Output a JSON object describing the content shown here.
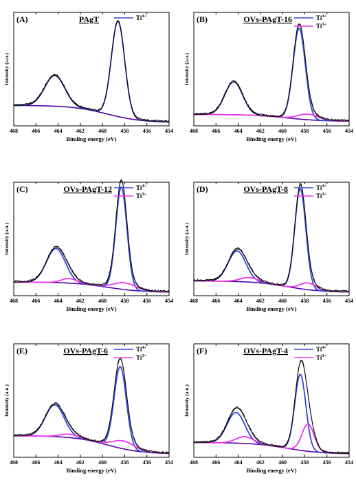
{
  "chart_data": [
    {
      "panel": "(A)",
      "title": "PAgT",
      "type": "line",
      "xlabel": "Binding energy (eV)",
      "ylabel": "Intensity (a.u.)",
      "xlim": [
        468,
        454
      ],
      "x_reversed": true,
      "xticks": [
        468,
        466,
        464,
        462,
        460,
        458,
        456,
        454
      ],
      "legend": [
        {
          "name": "Ti",
          "sup": "4+",
          "color": "#3344dd"
        }
      ],
      "legend_placement": "top-right",
      "baseline": {
        "start": 0.18,
        "end": 0.03
      },
      "peaks_by_series": {
        "Ti4+": [
          {
            "center": 464.3,
            "height": 0.27,
            "width": 0.9
          },
          {
            "center": 458.6,
            "height": 0.84,
            "width": 0.6
          }
        ]
      },
      "experimental": "envelope",
      "ylim": [
        0,
        1
      ]
    },
    {
      "panel": "(B)",
      "title": "OVs-PAgT-16",
      "type": "line",
      "xlabel": "Binding energy (eV)",
      "ylabel": "Intensity (a.u.)",
      "xlim": [
        468,
        454
      ],
      "x_reversed": true,
      "xticks": [
        468,
        466,
        464,
        462,
        460,
        458,
        456,
        454
      ],
      "legend": [
        {
          "name": "Ti",
          "sup": "4+",
          "color": "#3344dd"
        },
        {
          "name": "Ti",
          "sup": "3+",
          "color": "#ee33ee"
        }
      ],
      "legend_placement": "top-right",
      "baseline": {
        "start": 0.1,
        "end": 0.04
      },
      "peaks_by_series": {
        "Ti4+": [
          {
            "center": 464.4,
            "height": 0.29,
            "width": 0.8
          },
          {
            "center": 458.5,
            "height": 0.8,
            "width": 0.55
          }
        ],
        "Ti3+": [
          {
            "center": 457.7,
            "height": 0.05,
            "width": 0.9
          }
        ]
      },
      "experimental": "envelope",
      "ylim": [
        0,
        1
      ]
    },
    {
      "panel": "(C)",
      "title": "OVs-PAgT-12",
      "type": "line",
      "xlabel": "Binding energy (eV)",
      "ylabel": "Intensity (a.u.)",
      "xlim": [
        468,
        454
      ],
      "x_reversed": true,
      "xticks": [
        468,
        466,
        464,
        462,
        460,
        458,
        456,
        454
      ],
      "legend": [
        {
          "name": "Ti",
          "sup": "4+",
          "color": "#3344dd"
        },
        {
          "name": "Ti",
          "sup": "3+",
          "color": "#ee33ee"
        }
      ],
      "legend_placement": "top-right",
      "baseline": {
        "start": 0.12,
        "end": 0.03
      },
      "peaks_by_series": {
        "Ti4+": [
          {
            "center": 464.2,
            "height": 0.3,
            "width": 0.85
          },
          {
            "center": 458.3,
            "height": 0.9,
            "width": 0.5
          }
        ],
        "Ti3+": [
          {
            "center": 463.0,
            "height": 0.04,
            "width": 0.7
          },
          {
            "center": 458.0,
            "height": 0.06,
            "width": 1.0
          }
        ]
      },
      "experimental": "envelope",
      "ylim": [
        0,
        1
      ]
    },
    {
      "panel": "(D)",
      "title": "OVs-PAgT-8",
      "type": "line",
      "xlabel": "Binding energy (eV)",
      "ylabel": "Intensity (a.u.)",
      "xlim": [
        468,
        454
      ],
      "x_reversed": true,
      "xticks": [
        468,
        466,
        464,
        462,
        460,
        458,
        456,
        454
      ],
      "legend": [
        {
          "name": "Ti",
          "sup": "4+",
          "color": "#3344dd"
        },
        {
          "name": "Ti",
          "sup": "3+",
          "color": "#ee33ee"
        }
      ],
      "legend_placement": "top-right",
      "baseline": {
        "start": 0.13,
        "end": 0.03
      },
      "peaks_by_series": {
        "Ti4+": [
          {
            "center": 464.1,
            "height": 0.27,
            "width": 0.8
          },
          {
            "center": 458.4,
            "height": 0.88,
            "width": 0.5
          }
        ],
        "Ti3+": [
          {
            "center": 463.0,
            "height": 0.04,
            "width": 0.8
          },
          {
            "center": 457.7,
            "height": 0.06,
            "width": 0.7
          }
        ]
      },
      "experimental": "envelope",
      "ylim": [
        0,
        1
      ]
    },
    {
      "panel": "(E)",
      "title": "OVs-PAgT-6",
      "type": "line",
      "xlabel": "Binding energy (eV)",
      "ylabel": "Intensity (a.u.)",
      "xlim": [
        468,
        454
      ],
      "x_reversed": true,
      "xticks": [
        468,
        466,
        464,
        462,
        460,
        458,
        456,
        454
      ],
      "legend": [
        {
          "name": "Ti",
          "sup": "4+",
          "color": "#3344dd"
        },
        {
          "name": "Ti",
          "sup": "3+",
          "color": "#ee33ee"
        }
      ],
      "legend_placement": "top-right",
      "baseline": {
        "start": 0.19,
        "end": 0.03
      },
      "peaks_by_series": {
        "Ti4+": [
          {
            "center": 464.3,
            "height": 0.28,
            "width": 0.85
          },
          {
            "center": 458.4,
            "height": 0.72,
            "width": 0.55
          }
        ],
        "Ti3+": [
          {
            "center": 463.0,
            "height": 0.03,
            "width": 0.8
          },
          {
            "center": 458.1,
            "height": 0.07,
            "width": 1.0
          }
        ]
      },
      "experimental": "envelope",
      "ylim": [
        0,
        1
      ]
    },
    {
      "panel": "(F)",
      "title": "OVs-PAgT-4",
      "type": "line",
      "xlabel": "Binding energy (eV)",
      "ylabel": "Intensity (a.u.)",
      "xlim": [
        468,
        454
      ],
      "x_reversed": true,
      "xticks": [
        468,
        466,
        464,
        462,
        460,
        458,
        456,
        454
      ],
      "legend": [
        {
          "name": "Ti",
          "sup": "4+",
          "color": "#3344dd"
        },
        {
          "name": "Ti",
          "sup": "3+",
          "color": "#ee33ee"
        }
      ],
      "legend_placement": "top-right",
      "baseline": {
        "start": 0.13,
        "end": 0.03
      },
      "peaks_by_series": {
        "Ti4+": [
          {
            "center": 464.2,
            "height": 0.27,
            "width": 0.8
          },
          {
            "center": 458.4,
            "height": 0.67,
            "width": 0.5
          }
        ],
        "Ti3+": [
          {
            "center": 463.4,
            "height": 0.06,
            "width": 0.8
          },
          {
            "center": 457.7,
            "height": 0.24,
            "width": 0.55
          }
        ]
      },
      "experimental": "envelope",
      "ylim": [
        0,
        1
      ]
    }
  ],
  "colors": {
    "axis": "#000000",
    "experimental": "#000000",
    "envelope": "#111111",
    "background": "#5500aa",
    "Ti4+": "#3344dd",
    "Ti3+": "#ee33ee"
  }
}
